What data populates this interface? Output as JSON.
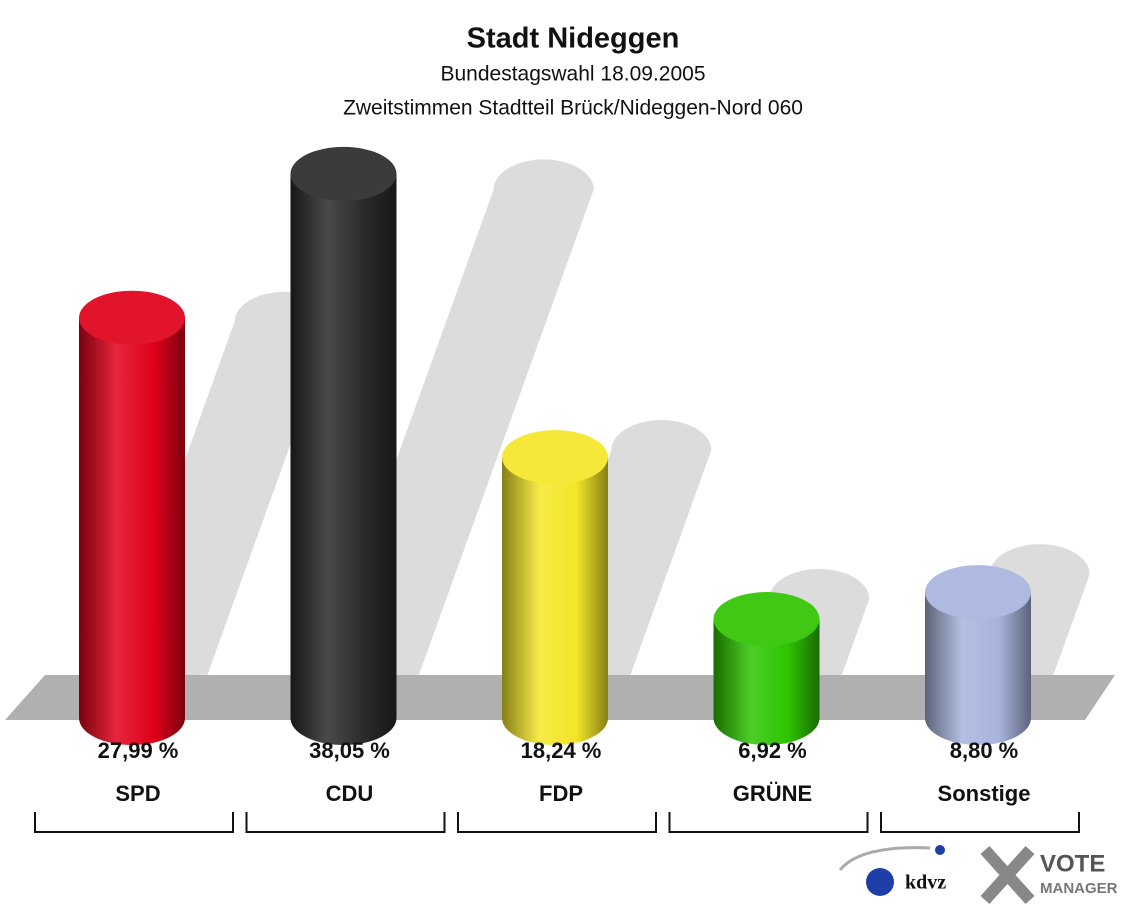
{
  "chart_data": {
    "type": "bar",
    "title": "Stadt Nideggen",
    "subtitle": "Bundestagswahl 18.09.2005",
    "subtitle2": "Zweitstimmen Stadtteil Brück/Nideggen-Nord  060",
    "categories": [
      "SPD",
      "CDU",
      "FDP",
      "GRÜNE",
      "Sonstige"
    ],
    "values": [
      27.99,
      38.05,
      18.24,
      6.92,
      8.8
    ],
    "value_labels": [
      "27,99 %",
      "38,05 %",
      "18,24 %",
      "6,92 %",
      "8,80 %"
    ],
    "colors": [
      "#e0001a",
      "#2a2a2a",
      "#f4e628",
      "#2ec400",
      "#a7b4dc"
    ]
  },
  "logo": {
    "kdvz": "kdvz",
    "vote": "VOTE",
    "manager": "MANAGER"
  }
}
